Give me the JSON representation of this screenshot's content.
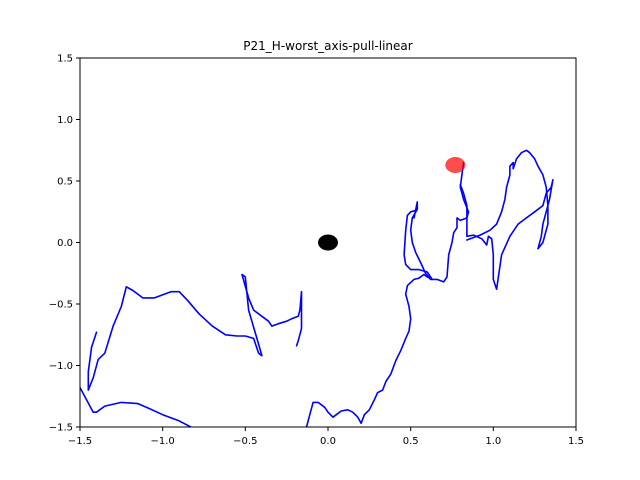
{
  "chart_data": {
    "type": "line",
    "title": "P21_H-worst_axis-pull-linear",
    "xlabel": "",
    "ylabel": "",
    "xlim": [
      -1.5,
      1.5
    ],
    "ylim": [
      -1.5,
      1.5
    ],
    "grid": false,
    "x_ticks": [
      -1.5,
      -1.0,
      -0.5,
      0.0,
      0.5,
      1.0,
      1.5
    ],
    "y_ticks": [
      -1.5,
      -1.0,
      -0.5,
      0.0,
      0.5,
      1.0,
      1.5
    ],
    "x_tick_labels": [
      "−1.5",
      "−1.0",
      "−0.5",
      "0.0",
      "0.5",
      "1.0",
      "1.5"
    ],
    "y_tick_labels": [
      "−1.5",
      "−1.0",
      "−0.5",
      "0.0",
      "0.5",
      "1.0",
      "1.5"
    ],
    "colors": {
      "path": "#0000ff",
      "start_marker": "#000000",
      "goal_marker": "#ff0000"
    },
    "markers": [
      {
        "x": 0.0,
        "y": 0.0,
        "color": "#000000",
        "alpha": 1.0
      },
      {
        "x": 0.77,
        "y": 0.63,
        "color": "#ff0000",
        "alpha": 0.7
      }
    ],
    "series": [
      {
        "points": [
          [
            -1.4,
            -0.73
          ],
          [
            -1.43,
            -0.85
          ],
          [
            -1.45,
            -1.05
          ],
          [
            -1.45,
            -1.2
          ],
          [
            -1.42,
            -1.1
          ],
          [
            -1.39,
            -0.95
          ],
          [
            -1.35,
            -0.9
          ],
          [
            -1.3,
            -0.68
          ],
          [
            -1.25,
            -0.52
          ],
          [
            -1.22,
            -0.36
          ],
          [
            -1.18,
            -0.39
          ],
          [
            -1.12,
            -0.45
          ],
          [
            -1.05,
            -0.45
          ],
          [
            -0.95,
            -0.4
          ],
          [
            -0.9,
            -0.4
          ],
          [
            -0.85,
            -0.47
          ],
          [
            -0.78,
            -0.58
          ],
          [
            -0.7,
            -0.68
          ],
          [
            -0.62,
            -0.75
          ],
          [
            -0.55,
            -0.76
          ],
          [
            -0.5,
            -0.76
          ],
          [
            -0.45,
            -0.78
          ],
          [
            -0.42,
            -0.9
          ],
          [
            -0.4,
            -0.92
          ],
          [
            -0.43,
            -0.78
          ],
          [
            -0.48,
            -0.55
          ],
          [
            -0.5,
            -0.28
          ],
          [
            -0.52,
            -0.26
          ],
          [
            -0.48,
            -0.45
          ],
          [
            -0.45,
            -0.55
          ],
          [
            -0.4,
            -0.6
          ],
          [
            -0.36,
            -0.64
          ],
          [
            -0.34,
            -0.68
          ],
          [
            -0.3,
            -0.66
          ],
          [
            -0.25,
            -0.64
          ],
          [
            -0.22,
            -0.62
          ],
          [
            -0.18,
            -0.6
          ],
          [
            -0.17,
            -0.55
          ],
          [
            -0.16,
            -0.4
          ],
          [
            -0.16,
            -0.7
          ],
          [
            -0.18,
            -0.8
          ],
          [
            -0.19,
            -0.84
          ]
        ]
      },
      {
        "points": [
          [
            -1.5,
            -1.18
          ],
          [
            -1.46,
            -1.28
          ],
          [
            -1.42,
            -1.38
          ],
          [
            -1.4,
            -1.38
          ],
          [
            -1.35,
            -1.33
          ],
          [
            -1.25,
            -1.3
          ],
          [
            -1.15,
            -1.31
          ],
          [
            -1.08,
            -1.35
          ],
          [
            -1.0,
            -1.4
          ],
          [
            -0.9,
            -1.45
          ],
          [
            -0.83,
            -1.5
          ]
        ]
      },
      {
        "points": [
          [
            -0.13,
            -1.5
          ],
          [
            -0.11,
            -1.4
          ],
          [
            -0.09,
            -1.3
          ],
          [
            -0.06,
            -1.3
          ],
          [
            -0.02,
            -1.34
          ],
          [
            0.0,
            -1.38
          ],
          [
            0.03,
            -1.42
          ],
          [
            0.05,
            -1.4
          ],
          [
            0.08,
            -1.37
          ],
          [
            0.12,
            -1.36
          ],
          [
            0.15,
            -1.38
          ],
          [
            0.18,
            -1.42
          ],
          [
            0.2,
            -1.47
          ],
          [
            0.22,
            -1.4
          ],
          [
            0.25,
            -1.36
          ],
          [
            0.28,
            -1.28
          ],
          [
            0.3,
            -1.22
          ],
          [
            0.33,
            -1.2
          ],
          [
            0.35,
            -1.13
          ],
          [
            0.38,
            -1.07
          ],
          [
            0.41,
            -0.96
          ],
          [
            0.44,
            -0.88
          ],
          [
            0.47,
            -0.78
          ],
          [
            0.49,
            -0.72
          ],
          [
            0.5,
            -0.62
          ],
          [
            0.49,
            -0.52
          ],
          [
            0.47,
            -0.42
          ],
          [
            0.48,
            -0.35
          ],
          [
            0.52,
            -0.3
          ],
          [
            0.55,
            -0.29
          ],
          [
            0.58,
            -0.26
          ],
          [
            0.6,
            -0.28
          ],
          [
            0.63,
            -0.3
          ],
          [
            0.6,
            -0.24
          ],
          [
            0.55,
            -0.22
          ],
          [
            0.5,
            -0.22
          ],
          [
            0.47,
            -0.18
          ],
          [
            0.46,
            -0.1
          ],
          [
            0.47,
            0.1
          ],
          [
            0.48,
            0.22
          ],
          [
            0.5,
            0.25
          ],
          [
            0.53,
            0.26
          ],
          [
            0.52,
            0.2
          ],
          [
            0.54,
            0.33
          ],
          [
            0.54,
            0.27
          ],
          [
            0.51,
            0.2
          ],
          [
            0.5,
            0.1
          ],
          [
            0.51,
            0.0
          ],
          [
            0.53,
            -0.08
          ],
          [
            0.57,
            -0.19
          ],
          [
            0.59,
            -0.25
          ],
          [
            0.62,
            -0.3
          ],
          [
            0.66,
            -0.3
          ],
          [
            0.7,
            -0.32
          ],
          [
            0.72,
            -0.28
          ],
          [
            0.73,
            -0.1
          ],
          [
            0.75,
            0.0
          ],
          [
            0.76,
            0.08
          ],
          [
            0.78,
            0.12
          ],
          [
            0.78,
            0.2
          ],
          [
            0.8,
            0.18
          ],
          [
            0.84,
            0.2
          ],
          [
            0.85,
            0.25
          ],
          [
            0.82,
            0.35
          ],
          [
            0.8,
            0.45
          ],
          [
            0.81,
            0.55
          ],
          [
            0.82,
            0.65
          ]
        ]
      },
      {
        "points": [
          [
            0.8,
            0.47
          ],
          [
            0.82,
            0.4
          ],
          [
            0.84,
            0.3
          ],
          [
            0.84,
            0.05
          ],
          [
            0.88,
            0.06
          ],
          [
            0.93,
            0.03
          ],
          [
            0.96,
            -0.02
          ],
          [
            0.97,
            0.05
          ],
          [
            0.99,
            0.03
          ],
          [
            1.0,
            -0.1
          ],
          [
            1.0,
            -0.3
          ],
          [
            1.02,
            -0.38
          ],
          [
            1.05,
            -0.1
          ],
          [
            1.1,
            0.05
          ],
          [
            1.15,
            0.15
          ],
          [
            1.2,
            0.2
          ],
          [
            1.25,
            0.25
          ],
          [
            1.3,
            0.3
          ],
          [
            1.32,
            0.4
          ],
          [
            1.35,
            0.45
          ],
          [
            1.36,
            0.51
          ],
          [
            1.34,
            0.35
          ],
          [
            1.32,
            0.25
          ],
          [
            1.3,
            0.15
          ],
          [
            1.29,
            0.05
          ],
          [
            1.27,
            -0.05
          ],
          [
            1.3,
            0.0
          ],
          [
            1.33,
            0.15
          ],
          [
            1.33,
            0.3
          ],
          [
            1.32,
            0.45
          ],
          [
            1.3,
            0.55
          ],
          [
            1.27,
            0.62
          ],
          [
            1.25,
            0.68
          ],
          [
            1.22,
            0.73
          ],
          [
            1.2,
            0.75
          ],
          [
            1.17,
            0.73
          ],
          [
            1.14,
            0.68
          ],
          [
            1.12,
            0.6
          ],
          [
            1.12,
            0.65
          ],
          [
            1.1,
            0.62
          ],
          [
            1.1,
            0.55
          ],
          [
            1.08,
            0.45
          ],
          [
            1.07,
            0.35
          ],
          [
            1.05,
            0.25
          ],
          [
            1.02,
            0.15
          ],
          [
            0.98,
            0.1
          ],
          [
            0.92,
            0.06
          ],
          [
            0.86,
            0.03
          ],
          [
            0.84,
            0.02
          ]
        ]
      }
    ]
  }
}
